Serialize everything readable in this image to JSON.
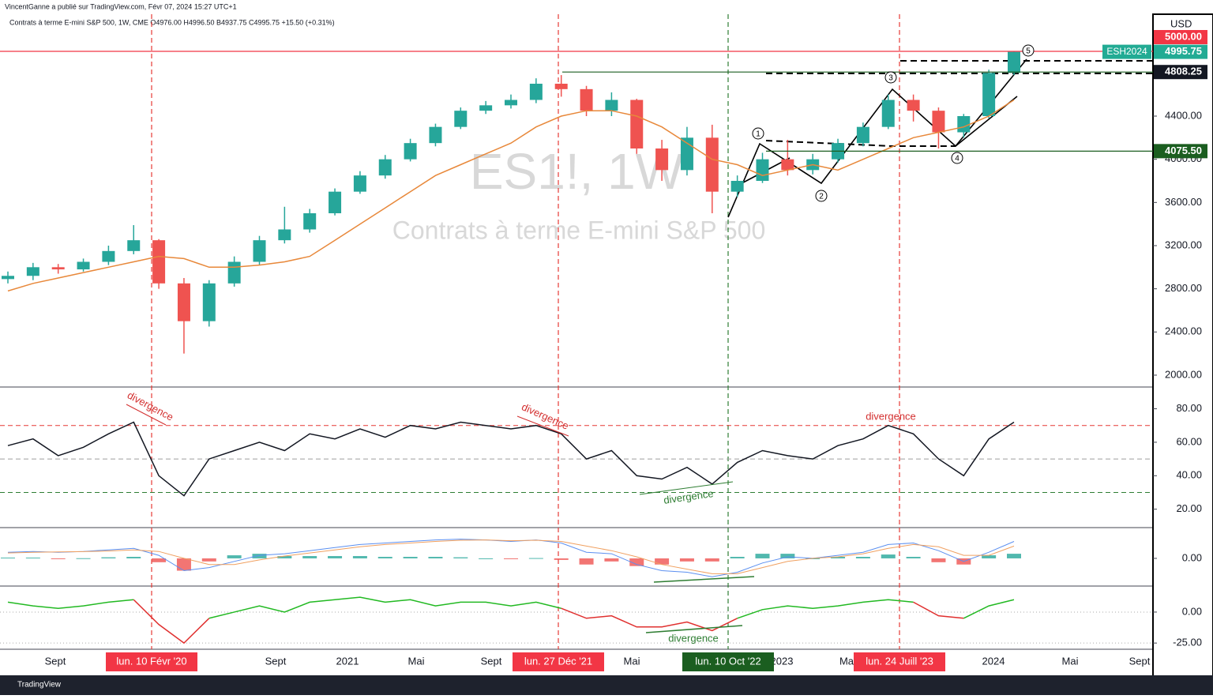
{
  "header": {
    "author_line": "VincentGanne a publié sur TradingView.com, Févr 07, 2024 15:27 UTC+1",
    "symbol_line": "Contrats à terme E-mini S&P 500, 1W, CME  O4976.00  H4996.50  B4937.75  C4995.75  +15.50 (+0.31%)"
  },
  "watermark": {
    "symbol": "ES1!, 1W",
    "name": "Contrats à terme E-mini S&P 500"
  },
  "chart_data": [
    {
      "type": "candlestick",
      "currency": "USD",
      "color_up": "#26a69a",
      "color_down": "#ef5350",
      "open": [
        2890,
        2920,
        3000,
        2980,
        3050,
        3150,
        3250,
        2850,
        2500,
        2850,
        3050,
        3250,
        3350,
        3500,
        3700,
        3850,
        4000,
        4150,
        4300,
        4450,
        4500,
        4550,
        4700,
        4650,
        4450,
        4550,
        4100,
        3900,
        4200,
        3700,
        3800,
        4000,
        3900,
        4000,
        4150,
        4300,
        4550,
        4450,
        4250,
        4400,
        4800
      ],
      "high": [
        2960,
        3040,
        3030,
        3080,
        3200,
        3390,
        3260,
        2900,
        2880,
        3100,
        3290,
        3560,
        3540,
        3730,
        3890,
        4040,
        4190,
        4330,
        4480,
        4540,
        4600,
        4750,
        4780,
        4680,
        4620,
        4560,
        4180,
        4300,
        4320,
        3850,
        4060,
        4180,
        4050,
        4190,
        4340,
        4600,
        4600,
        4480,
        4420,
        4830,
        5000
      ],
      "low": [
        2850,
        2880,
        2940,
        2960,
        3020,
        3120,
        2800,
        2200,
        2450,
        2820,
        3020,
        3220,
        3320,
        3480,
        3680,
        3820,
        3980,
        4120,
        4280,
        4420,
        4470,
        4520,
        4580,
        4400,
        4400,
        4050,
        3800,
        3850,
        3500,
        3650,
        3780,
        3850,
        3860,
        3970,
        4120,
        4280,
        4350,
        4100,
        4200,
        4380,
        4780
      ],
      "close": [
        2920,
        3000,
        2980,
        3050,
        3150,
        3250,
        2850,
        2500,
        2850,
        3050,
        3250,
        3350,
        3500,
        3700,
        3850,
        4000,
        4150,
        4300,
        4450,
        4500,
        4550,
        4700,
        4650,
        4450,
        4550,
        4100,
        3900,
        4200,
        3700,
        3800,
        4000,
        3900,
        4000,
        4150,
        4300,
        4550,
        4450,
        4250,
        4400,
        4800,
        4995.75
      ],
      "moving_average": {
        "color": "#e8883a",
        "values": [
          2780,
          2850,
          2900,
          2950,
          3000,
          3050,
          3100,
          3080,
          3000,
          3000,
          3020,
          3050,
          3100,
          3250,
          3400,
          3550,
          3700,
          3850,
          3950,
          4050,
          4150,
          4300,
          4400,
          4450,
          4450,
          4400,
          4300,
          4150,
          4000,
          3950,
          3850,
          3900,
          3950,
          3900,
          4000,
          4100,
          4200,
          4250,
          4300,
          4400,
          4550
        ]
      },
      "ylim": [
        1890,
        5344
      ],
      "yticks": [
        {
          "value": 2000,
          "label": "2000.00"
        },
        {
          "value": 2400,
          "label": "2400.00"
        },
        {
          "value": 2800,
          "label": "2800.00"
        },
        {
          "value": 3200,
          "label": "3200.00"
        },
        {
          "value": 3600,
          "label": "3600.00"
        },
        {
          "value": 4000,
          "label": "4000.00"
        },
        {
          "value": 4400,
          "label": "4400.00"
        }
      ],
      "levels": [
        {
          "value": 5000,
          "label": "5000.00",
          "color": "#f23645"
        },
        {
          "value": 4995.75,
          "label": "4995.75",
          "tag": "ESH2024",
          "color": "#22ab94"
        },
        {
          "value": 4808.25,
          "label": "4808.25",
          "color": "#131722"
        },
        {
          "value": 4075.5,
          "label": "4075.50",
          "color": "#1b5e20"
        }
      ],
      "wave_labels": [
        "1",
        "2",
        "3",
        "4",
        "5"
      ]
    },
    {
      "type": "line",
      "color": "#131722",
      "values": [
        58,
        62,
        52,
        57,
        65,
        72,
        40,
        28,
        50,
        55,
        60,
        55,
        65,
        62,
        68,
        63,
        70,
        68,
        72,
        70,
        68,
        70,
        65,
        50,
        55,
        40,
        38,
        45,
        35,
        48,
        55,
        52,
        50,
        58,
        62,
        70,
        65,
        50,
        40,
        62,
        72
      ],
      "ylim": [
        9,
        93
      ],
      "yticks": [
        {
          "value": 80,
          "label": "80.00"
        },
        {
          "value": 60,
          "label": "60.00"
        },
        {
          "value": 40,
          "label": "40.00"
        },
        {
          "value": 20,
          "label": "20.00"
        }
      ],
      "levels": [
        {
          "value": 70,
          "color": "#e53935"
        },
        {
          "value": 50,
          "color": "#9e9e9e"
        },
        {
          "value": 30,
          "color": "#2e7d32"
        }
      ],
      "annotations": [
        {
          "text": "divergence",
          "color": "#d32f2f"
        },
        {
          "text": "divergence",
          "color": "#d32f2f"
        },
        {
          "text": "divergence",
          "color": "#2e7d32"
        },
        {
          "text": "divergence",
          "color": "#d32f2f"
        }
      ]
    },
    {
      "type": "macd",
      "macd_color": "#5b8ff0",
      "signal_color": "#f0a060",
      "up_color": "#26a69a",
      "down_color": "#ef5350",
      "macd": [
        40,
        45,
        40,
        45,
        55,
        65,
        20,
        -80,
        -60,
        -20,
        20,
        30,
        50,
        70,
        90,
        100,
        110,
        120,
        125,
        120,
        110,
        120,
        100,
        40,
        30,
        -40,
        -80,
        -90,
        -120,
        -90,
        -30,
        10,
        0,
        20,
        40,
        90,
        100,
        50,
        -20,
        40,
        110
      ],
      "signal": [
        35,
        40,
        42,
        44,
        48,
        55,
        45,
        0,
        -40,
        -40,
        -10,
        15,
        35,
        55,
        75,
        90,
        100,
        110,
        118,
        120,
        115,
        118,
        110,
        80,
        50,
        10,
        -40,
        -70,
        -100,
        -100,
        -60,
        -20,
        0,
        10,
        30,
        65,
        90,
        75,
        20,
        20,
        80
      ],
      "histogram": [
        5,
        5,
        -2,
        1,
        7,
        10,
        -25,
        -80,
        -20,
        20,
        30,
        15,
        15,
        15,
        15,
        10,
        10,
        10,
        7,
        0,
        -5,
        2,
        -10,
        -40,
        -20,
        -50,
        -40,
        -20,
        -20,
        10,
        30,
        30,
        0,
        10,
        10,
        25,
        10,
        -25,
        -40,
        20,
        30
      ],
      "ylim": [
        -180,
        200
      ],
      "yticks": [
        {
          "value": 0,
          "label": "0.00"
        }
      ]
    },
    {
      "type": "line",
      "color_positive": "#22b922",
      "color_negative": "#e0302f",
      "values": [
        8,
        5,
        3,
        5,
        8,
        10,
        -10,
        -25,
        -5,
        0,
        5,
        0,
        8,
        10,
        12,
        8,
        10,
        5,
        8,
        8,
        5,
        8,
        3,
        -5,
        -3,
        -12,
        -12,
        -8,
        -15,
        -5,
        2,
        5,
        3,
        5,
        8,
        10,
        8,
        -3,
        -5,
        5,
        10
      ],
      "ylim": [
        -30,
        21
      ],
      "yticks": [
        {
          "value": 0,
          "label": "0.00"
        },
        {
          "value": -25,
          "label": "-25.00"
        }
      ],
      "annotations": [
        {
          "text": "divergence",
          "color": "#2e7d32"
        }
      ]
    }
  ],
  "time_axis": {
    "labels": [
      "Sept",
      "Sept",
      "2021",
      "Mai",
      "Sept",
      "Mai",
      "2023",
      "Ma",
      "2024",
      "Mai",
      "Sept"
    ],
    "markers": [
      {
        "text": "lun. 10 Févr '20",
        "color": "#f23645"
      },
      {
        "text": "lun. 27 Déc '21",
        "color": "#f23645"
      },
      {
        "text": "lun. 10 Oct '22",
        "color": "#1b5e20"
      },
      {
        "text": "lun. 24 Juill '23",
        "color": "#f23645"
      }
    ]
  },
  "footer": {
    "brand": "TradingView"
  }
}
